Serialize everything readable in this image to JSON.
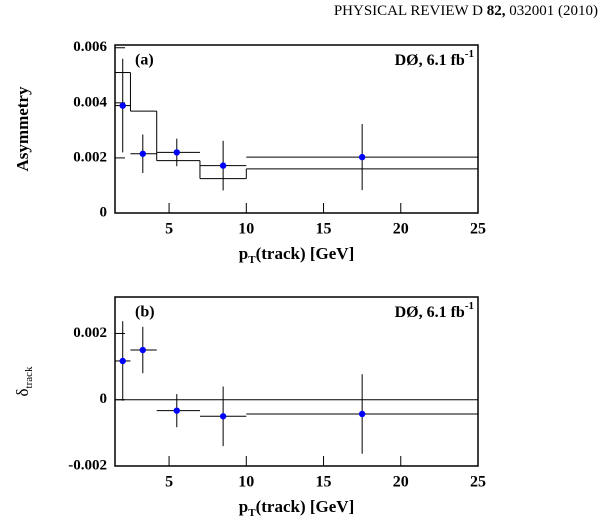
{
  "header": {
    "journal": "PHYSICAL REVIEW D",
    "volume": "82,",
    "rest": "032001 (2010)"
  },
  "chart_data": [
    {
      "type": "step_errorbar",
      "panel_label": "(a)",
      "annotation": "DØ, 6.1 fb",
      "annotation_sup": "-1",
      "ylabel": "Asymmetry",
      "xlabel": "p",
      "xlabel_sub": "T",
      "xlabel_rest": "(track) [GeV]",
      "x": [
        2,
        3.3,
        5.5,
        8.5,
        17.5
      ],
      "values": [
        0.0039,
        0.00215,
        0.0022,
        0.00172,
        0.00203
      ],
      "errors": [
        0.0017,
        0.0007,
        0.0005,
        0.0009,
        0.0012
      ],
      "bin_edges": [
        1.5,
        2.5,
        4.2,
        7,
        10,
        25
      ],
      "step_values": [
        0.0051,
        0.0037,
        0.0019,
        0.00125,
        0.0016
      ],
      "color": "#0000ff",
      "xlim": [
        1.5,
        25
      ],
      "ylim": [
        0,
        0.0061
      ],
      "xticks": [
        5,
        10,
        15,
        20,
        25
      ],
      "yticks": [
        0,
        0.002,
        0.004,
        0.006
      ]
    },
    {
      "type": "errorbar",
      "panel_label": "(b)",
      "annotation": "DØ, 6.1 fb",
      "annotation_sup": "-1",
      "ylabel": "δ",
      "ylabel_sub": "track",
      "xlabel": "p",
      "xlabel_sub": "T",
      "xlabel_rest": "(track) [GeV]",
      "x": [
        2,
        3.3,
        5.5,
        8.5,
        17.5
      ],
      "values": [
        0.00117,
        0.0015,
        -0.00033,
        -0.0005,
        -0.00043
      ],
      "errors": [
        0.0012,
        0.0007,
        0.0005,
        0.0009,
        0.0012
      ],
      "bin_edges": [
        1.5,
        2.5,
        4.2,
        7,
        10,
        25
      ],
      "color": "#0000ff",
      "zero_line": true,
      "xlim": [
        1.5,
        25
      ],
      "ylim": [
        -0.002,
        0.0031
      ],
      "xticks": [
        5,
        10,
        15,
        20,
        25
      ],
      "yticks": [
        -0.002,
        0,
        0.002
      ]
    }
  ]
}
